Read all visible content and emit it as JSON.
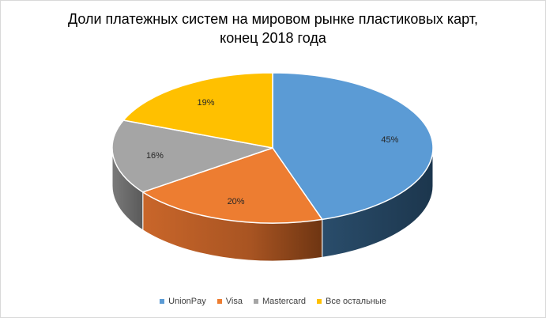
{
  "chart_data": {
    "type": "pie",
    "title_lines": [
      "Доли платежных систем на мировом рынке пластиковых карт,",
      "конец 2018 года"
    ],
    "categories": [
      "UnionPay",
      "Visa",
      "Mastercard",
      "Все остальные"
    ],
    "values": [
      45,
      20,
      16,
      19
    ],
    "value_labels": [
      "45%",
      "20%",
      "16%",
      "19%"
    ],
    "colors": [
      "#5b9bd5",
      "#ed7d31",
      "#a5a5a5",
      "#ffc000"
    ],
    "side_colors": [
      "#223f58",
      "#8e4a1a",
      "#636363",
      "#997300"
    ],
    "legend_position": "bottom",
    "style": "3d"
  }
}
